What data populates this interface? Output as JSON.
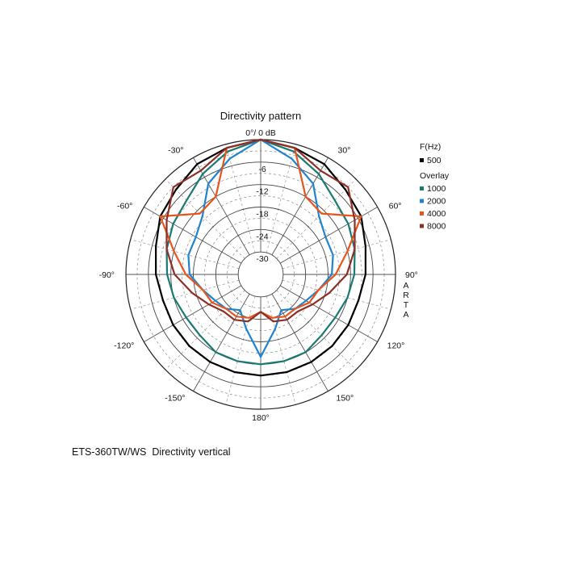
{
  "caption": "ETS-360TW/WS  Directivity vertical",
  "chart_data": {
    "type": "polar",
    "title": "Directivity pattern",
    "top_label": "0°/ 0 dB",
    "side_label": "ARTA",
    "angle_labels": [
      {
        "angle": -30,
        "text": "-30°"
      },
      {
        "angle": 30,
        "text": "30°"
      },
      {
        "angle": -60,
        "text": "-60°"
      },
      {
        "angle": 60,
        "text": "60°"
      },
      {
        "angle": -90,
        "text": "-90°"
      },
      {
        "angle": 90,
        "text": "90°"
      },
      {
        "angle": -120,
        "text": "-120°"
      },
      {
        "angle": 120,
        "text": "120°"
      },
      {
        "angle": -150,
        "text": "-150°"
      },
      {
        "angle": 150,
        "text": "150°"
      },
      {
        "angle": 180,
        "text": "180°"
      }
    ],
    "r_ticks": [
      {
        "value": -6,
        "text": "-6"
      },
      {
        "value": -12,
        "text": "-12"
      },
      {
        "value": -18,
        "text": "-18"
      },
      {
        "value": -24,
        "text": "-24"
      },
      {
        "value": -30,
        "text": "-30"
      }
    ],
    "r_range": [
      -36,
      0
    ],
    "rings": [
      0,
      -6,
      -12,
      -18,
      -24,
      -30
    ],
    "minor_rings": [
      -3,
      -9,
      -15,
      -21,
      -27
    ],
    "spoke_step_deg": 15,
    "grid": true,
    "legend": {
      "header": "F(Hz)",
      "main": [
        {
          "name": "500",
          "color": "#000000"
        }
      ],
      "overlay_label": "Overlay",
      "overlay": [
        {
          "name": "1000",
          "color": "#1a7a72"
        },
        {
          "name": "2000",
          "color": "#1e84cf"
        },
        {
          "name": "4000",
          "color": "#e8541c"
        },
        {
          "name": "8000",
          "color": "#8b3026"
        }
      ]
    },
    "angles": [
      0,
      15,
      30,
      45,
      60,
      75,
      90,
      105,
      120,
      135,
      150,
      165,
      180,
      195,
      210,
      225,
      240,
      255,
      270,
      285,
      300,
      315,
      330,
      345
    ],
    "series": [
      {
        "name": "500",
        "color": "#000000",
        "values": [
          0,
          -1,
          -2,
          -4,
          -5,
          -7,
          -8,
          -9,
          -9,
          -9,
          -9,
          -9,
          -9,
          -9,
          -9,
          -9,
          -9,
          -9,
          -8,
          -7,
          -5,
          -4,
          -2,
          -1
        ]
      },
      {
        "name": "1000",
        "color": "#1a7a72",
        "values": [
          0,
          -2,
          -5,
          -8,
          -9,
          -10,
          -11,
          -12,
          -13,
          -13,
          -12,
          -12,
          -12,
          -12,
          -12,
          -13,
          -13,
          -12,
          -11,
          -10,
          -9,
          -8,
          -5,
          -2
        ]
      },
      {
        "name": "2000",
        "color": "#1e84cf",
        "values": [
          0,
          -4,
          -8,
          -14,
          -16,
          -16,
          -17,
          -20,
          -22,
          -23,
          -25,
          -21,
          -14,
          -21,
          -25,
          -23,
          -22,
          -20,
          -17,
          -16,
          -16,
          -14,
          -8,
          -4
        ]
      },
      {
        "name": "4000",
        "color": "#e8541c",
        "values": [
          0,
          -1,
          -12,
          -13,
          -5,
          -12,
          -16,
          -20,
          -21,
          -23,
          -23,
          -24,
          -26,
          -24,
          -23,
          -23,
          -21,
          -20,
          -16,
          -12,
          -5,
          -13,
          -12,
          -1
        ]
      },
      {
        "name": "8000",
        "color": "#8b3026",
        "values": [
          0,
          -1,
          -4,
          -3,
          -7,
          -10,
          -13,
          -17,
          -20,
          -22,
          -22,
          -23,
          -26,
          -23,
          -22,
          -22,
          -20,
          -17,
          -13,
          -10,
          -7,
          -3,
          -4,
          -1
        ]
      }
    ]
  }
}
